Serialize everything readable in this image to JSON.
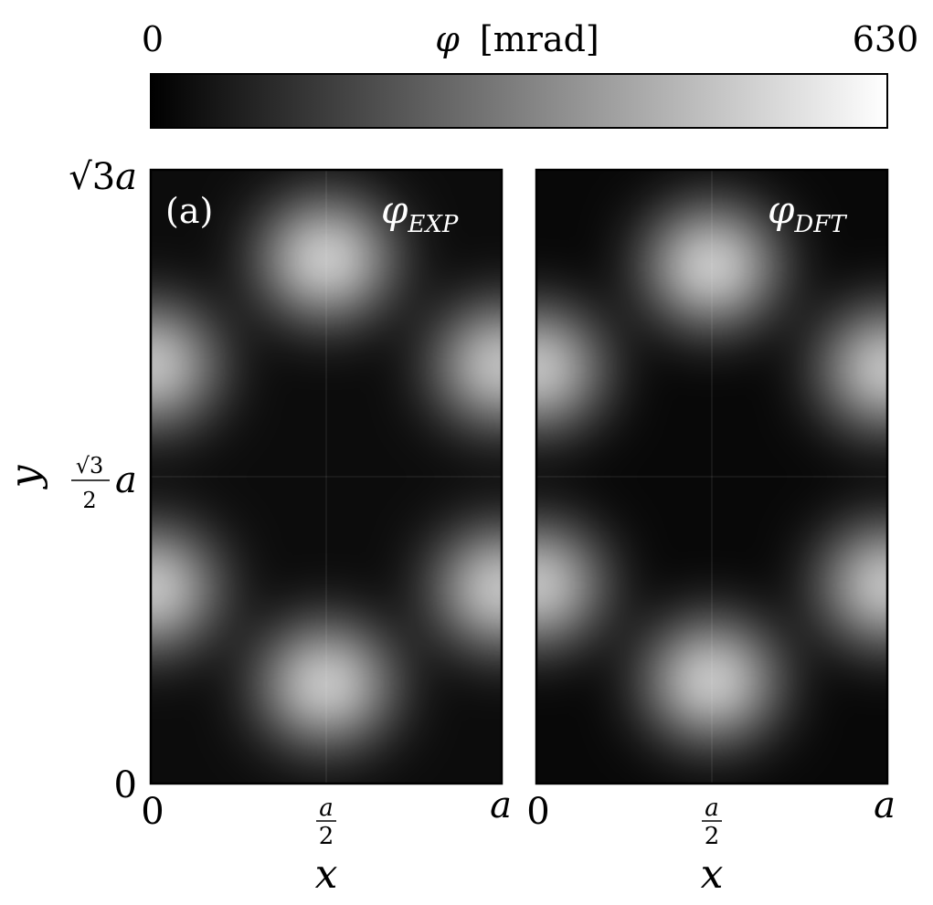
{
  "chart_data": {
    "type": "heatmap",
    "colorbar": {
      "label_symbol": "φ",
      "label_unit": "[mrad]",
      "min_label": "0",
      "max_label": "630",
      "range": [
        0,
        630
      ],
      "colormap": "grayscale",
      "low_color": "#000000",
      "high_color": "#ffffff"
    },
    "shared_axes": {
      "xlabel": "x",
      "ylabel": "y",
      "xticks": [
        {
          "value": 0,
          "label": "0"
        },
        {
          "value": 0.5,
          "label_num": "a",
          "label_den": "2"
        },
        {
          "value": 1,
          "label": "a"
        }
      ],
      "yticks": [
        {
          "value": 0,
          "label": "0"
        },
        {
          "value": 0.866,
          "label_num": "√3",
          "label_den": "2",
          "label_suffix": "a"
        },
        {
          "value": 1.732,
          "label": "√3a"
        }
      ],
      "xlim": [
        0,
        1
      ],
      "ylim": [
        0,
        1.732
      ],
      "x_unit": "a",
      "y_unit": "a"
    },
    "panels": [
      {
        "panel_label": "(a)",
        "title_symbol": "φ",
        "title_subscript": "EXP",
        "peaks": [
          {
            "x": 0.5,
            "y": 1.48,
            "phi": 630
          },
          {
            "x": 0.5,
            "y": 0.28,
            "phi": 620
          },
          {
            "x": 0.0,
            "y": 1.18,
            "phi": 600
          },
          {
            "x": 1.0,
            "y": 1.18,
            "phi": 600
          },
          {
            "x": 0.0,
            "y": 0.55,
            "phi": 610
          },
          {
            "x": 1.0,
            "y": 0.55,
            "phi": 610
          }
        ],
        "background_phi": 30
      },
      {
        "panel_label": "",
        "title_symbol": "φ",
        "title_subscript": "DFT",
        "peaks": [
          {
            "x": 0.5,
            "y": 1.46,
            "phi": 630
          },
          {
            "x": 0.5,
            "y": 0.29,
            "phi": 625
          },
          {
            "x": 0.0,
            "y": 1.17,
            "phi": 605
          },
          {
            "x": 1.0,
            "y": 1.17,
            "phi": 605
          },
          {
            "x": 0.0,
            "y": 0.56,
            "phi": 605
          },
          {
            "x": 1.0,
            "y": 0.56,
            "phi": 605
          }
        ],
        "background_phi": 20
      }
    ]
  }
}
